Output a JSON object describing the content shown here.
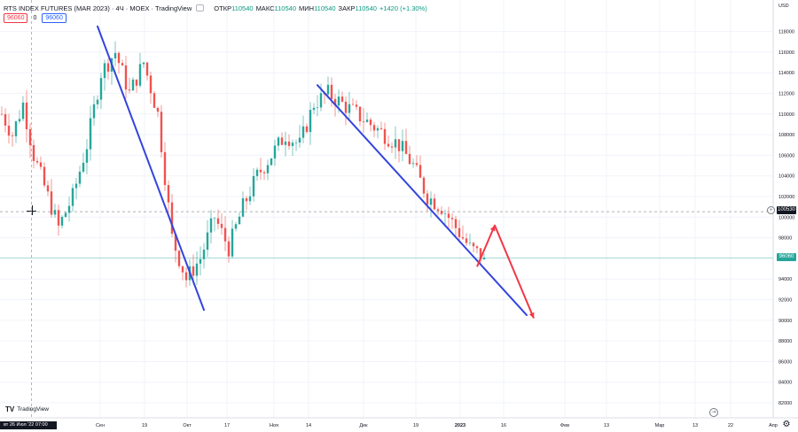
{
  "header": {
    "symbol": "RTS INDEX FUTURES (MAR 2023) · 4Ч · MOEX · TradingView",
    "ohlc": [
      {
        "key": "ОТКР",
        "value": "110540"
      },
      {
        "key": "МАКС",
        "value": "110540"
      },
      {
        "key": "МИН",
        "value": "110540"
      },
      {
        "key": "ЗАКР",
        "value": "110540"
      },
      {
        "key": "",
        "value": "+1420 (+1.30%)"
      }
    ]
  },
  "trade": {
    "sell": "96060",
    "spread": "0",
    "buy": "96060"
  },
  "price_axis": {
    "currency": "USD",
    "crosshair_price": "100530",
    "last_price": "96060"
  },
  "crosshair_time": "вт 26 Июл '22  07:00",
  "branding": "TradingView",
  "icons": {
    "settings": "gear-icon",
    "goto_realtime": "goto-realtime-icon",
    "add_alert": "plus-circle-icon"
  },
  "colors": {
    "up": "#26a69a",
    "down": "#ef5350",
    "trendline_blue": "#3344dd",
    "arrow_red": "#f23645",
    "last_price_line": "#26a69a"
  },
  "chart_data": {
    "type": "candlestick",
    "ylim": [
      80000,
      122000
    ],
    "y_ticks": [
      82000,
      84000,
      86000,
      88000,
      90000,
      92000,
      94000,
      96000,
      98000,
      100000,
      102000,
      104000,
      106000,
      108000,
      110000,
      112000,
      114000,
      116000,
      118000
    ],
    "x_tick_labels": [
      "Сен",
      "19",
      "Окт",
      "17",
      "Ноя",
      "14",
      "Дек",
      "19",
      "2023",
      "16",
      "Фев",
      "13",
      "Мар",
      "13",
      "22",
      "Апр"
    ],
    "grid": true,
    "price_path": [
      {
        "i": 0,
        "p": 110000
      },
      {
        "i": 3,
        "p": 108000
      },
      {
        "i": 6,
        "p": 111000
      },
      {
        "i": 9,
        "p": 106000
      },
      {
        "i": 12,
        "p": 103000
      },
      {
        "i": 16,
        "p": 99000
      },
      {
        "i": 20,
        "p": 102000
      },
      {
        "i": 24,
        "p": 107000
      },
      {
        "i": 28,
        "p": 114000
      },
      {
        "i": 32,
        "p": 116000
      },
      {
        "i": 36,
        "p": 112000
      },
      {
        "i": 40,
        "p": 115000
      },
      {
        "i": 44,
        "p": 110000
      },
      {
        "i": 48,
        "p": 98000
      },
      {
        "i": 52,
        "p": 94000
      },
      {
        "i": 56,
        "p": 96000
      },
      {
        "i": 60,
        "p": 100000
      },
      {
        "i": 64,
        "p": 97000
      },
      {
        "i": 68,
        "p": 101000
      },
      {
        "i": 72,
        "p": 104000
      },
      {
        "i": 76,
        "p": 106000
      },
      {
        "i": 80,
        "p": 108000
      },
      {
        "i": 84,
        "p": 107000
      },
      {
        "i": 88,
        "p": 111000
      },
      {
        "i": 92,
        "p": 112000
      },
      {
        "i": 96,
        "p": 111000
      },
      {
        "i": 100,
        "p": 110000
      },
      {
        "i": 104,
        "p": 109000
      },
      {
        "i": 108,
        "p": 108000
      },
      {
        "i": 112,
        "p": 107000
      },
      {
        "i": 116,
        "p": 105000
      },
      {
        "i": 120,
        "p": 102000
      },
      {
        "i": 124,
        "p": 101000
      },
      {
        "i": 128,
        "p": 99000
      },
      {
        "i": 132,
        "p": 97000
      },
      {
        "i": 136,
        "p": 96060
      }
    ],
    "drawings": {
      "lines": [
        {
          "color": "#3344dd",
          "from": {
            "i": 27,
            "p": 118500
          },
          "to": {
            "i": 57,
            "p": 91000
          }
        },
        {
          "color": "#3344dd",
          "from": {
            "i": 89,
            "p": 112800
          },
          "to": {
            "i": 148,
            "p": 90500
          }
        }
      ],
      "arrow": {
        "color": "#f23645",
        "points": [
          {
            "i": 134,
            "p": 95200
          },
          {
            "i": 139,
            "p": 99200
          },
          {
            "i": 150,
            "p": 90200
          }
        ]
      },
      "hlines": [
        {
          "price": 100530,
          "style": "dashed"
        },
        {
          "price": 96060,
          "style": "solid"
        }
      ]
    }
  }
}
